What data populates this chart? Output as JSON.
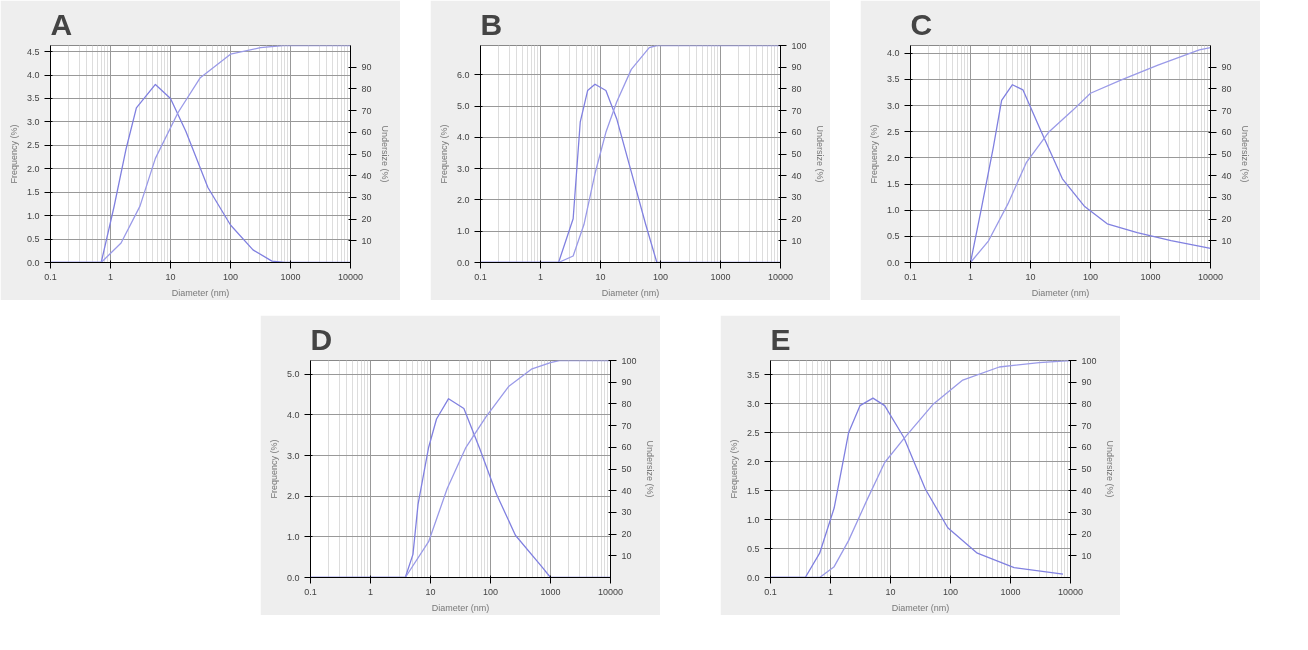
{
  "chart_data": [
    {
      "type": "line",
      "title": "A",
      "xlabel": "Diameter (nm)",
      "ylabel": "Frequency (%)",
      "y2label": "Undersize (%)",
      "log": "x",
      "grid": true,
      "xlim": [
        0.1,
        10000
      ],
      "xticks": [
        0.1,
        1,
        10,
        100,
        1000,
        10000
      ],
      "ylim": [
        0,
        4.63
      ],
      "yticks": [
        {
          "value": 0,
          "label": "0.0"
        },
        0.5,
        {
          "value": 1,
          "label": "1.0"
        },
        1.5,
        {
          "value": 2,
          "label": "2.0"
        },
        2.5,
        {
          "value": 3,
          "label": "3.0"
        },
        3.5,
        {
          "value": 4,
          "label": "4.0"
        },
        4.5
      ],
      "y2lim": [
        0,
        100
      ],
      "y2ticks": [
        10,
        20,
        30,
        40,
        50,
        60,
        70,
        80,
        90
      ],
      "series": [
        {
          "color": "#8080e0",
          "x": [
            0.1,
            0.7,
            1.15,
            1.8,
            2.7,
            5.6,
            10,
            18,
            42,
            100,
            237,
            490,
            800,
            10000
          ],
          "values": [
            0,
            0,
            1.2,
            2.4,
            3.3,
            3.8,
            3.5,
            2.8,
            1.6,
            0.8,
            0.27,
            0.03,
            0,
            0
          ]
        },
        {
          "color": "#9a9ae8",
          "axis": "y2",
          "x": [
            0.1,
            0.7,
            1.5,
            3.1,
            5.6,
            13.3,
            31,
            100,
            316,
            750,
            10000
          ],
          "values": [
            0,
            0,
            9,
            26,
            48,
            69,
            85,
            96,
            99,
            100,
            100
          ]
        }
      ]
    },
    {
      "type": "line",
      "title": "B",
      "xlabel": "Diameter (nm)",
      "ylabel": "Frequency (%)",
      "y2label": "Undersize (%)",
      "log": "x",
      "grid": true,
      "xlim": [
        0.1,
        10000
      ],
      "xticks": [
        0.1,
        1,
        10,
        100,
        1000,
        10000
      ],
      "ylim": [
        0,
        6.94
      ],
      "yticks": [
        {
          "value": 0,
          "label": "0.0"
        },
        {
          "value": 1,
          "label": "1.0"
        },
        {
          "value": 2,
          "label": "2.0"
        },
        {
          "value": 3,
          "label": "3.0"
        },
        {
          "value": 4,
          "label": "4.0"
        },
        {
          "value": 5,
          "label": "5.0"
        },
        {
          "value": 6,
          "label": "6.0"
        }
      ],
      "y2lim": [
        0,
        100
      ],
      "y2ticks": [
        10,
        20,
        30,
        40,
        50,
        60,
        70,
        80,
        90,
        100
      ],
      "series": [
        {
          "color": "#8080e0",
          "x": [
            0.1,
            2.0,
            3.5,
            4.6,
            6.1,
            8.1,
            12.3,
            18.6,
            32.6,
            57,
            87,
            10000
          ],
          "values": [
            0,
            0,
            1.4,
            4.5,
            5.5,
            5.7,
            5.5,
            4.6,
            2.9,
            1.2,
            0,
            0
          ]
        },
        {
          "color": "#9a9ae8",
          "axis": "y2",
          "x": [
            0.1,
            2.0,
            3.5,
            5.3,
            8.1,
            12.3,
            18.6,
            32.6,
            65,
            87,
            10000
          ],
          "values": [
            0,
            0,
            3,
            17.5,
            41,
            60,
            74,
            89,
            99,
            100,
            100
          ]
        }
      ]
    },
    {
      "type": "line",
      "title": "C",
      "xlabel": "Diameter (nm)",
      "ylabel": "Frequency (%)",
      "y2label": "Undersize (%)",
      "log": "x",
      "grid": true,
      "xlim": [
        0.1,
        10000
      ],
      "xticks": [
        0.1,
        1,
        10,
        100,
        1000,
        10000
      ],
      "ylim": [
        0,
        4.15
      ],
      "yticks": [
        {
          "value": 0,
          "label": "0.0"
        },
        0.5,
        {
          "value": 1,
          "label": "1.0"
        },
        1.5,
        {
          "value": 2,
          "label": "2.0"
        },
        2.5,
        {
          "value": 3,
          "label": "3.0"
        },
        3.5,
        {
          "value": 4,
          "label": "4.0"
        }
      ],
      "y2lim": [
        0,
        100
      ],
      "y2ticks": [
        10,
        20,
        30,
        40,
        50,
        60,
        70,
        80,
        90
      ],
      "series": [
        {
          "color": "#8080e0",
          "x": [
            1,
            1.5,
            2.4,
            3.3,
            5,
            7.5,
            14.5,
            34,
            80,
            190,
            600,
            2200,
            10000
          ],
          "values": [
            0,
            1.0,
            2.2,
            3.1,
            3.4,
            3.3,
            2.55,
            1.6,
            1.07,
            0.74,
            0.57,
            0.42,
            0.27
          ]
        },
        {
          "color": "#9a9ae8",
          "axis": "y2",
          "x": [
            1,
            2,
            4.2,
            8.5,
            20,
            50,
            100,
            320,
            1330,
            6500,
            10000
          ],
          "values": [
            0,
            10,
            27,
            46,
            60,
            70,
            78,
            84,
            91,
            98,
            99
          ]
        }
      ]
    },
    {
      "type": "line",
      "title": "D",
      "xlabel": "Diameter (nm)",
      "ylabel": "Frequency (%)",
      "y2label": "Undersize (%)",
      "log": "x",
      "grid": true,
      "xlim": [
        0.1,
        10000
      ],
      "xticks": [
        0.1,
        1,
        10,
        100,
        1000,
        10000
      ],
      "ylim": [
        0,
        5.34
      ],
      "yticks": [
        {
          "value": 0,
          "label": "0.0"
        },
        {
          "value": 1,
          "label": "1.0"
        },
        {
          "value": 2,
          "label": "2.0"
        },
        {
          "value": 3,
          "label": "3.0"
        },
        {
          "value": 4,
          "label": "4.0"
        },
        {
          "value": 5,
          "label": "5.0"
        }
      ],
      "y2lim": [
        0,
        100
      ],
      "y2ticks": [
        10,
        20,
        30,
        40,
        50,
        60,
        70,
        80,
        90,
        100
      ],
      "series": [
        {
          "color": "#8080e0",
          "x": [
            0.1,
            3.8,
            5.1,
            6.2,
            9.3,
            12.6,
            20,
            36,
            67,
            126,
            260,
            720,
            1000,
            10000
          ],
          "values": [
            0,
            0,
            0.57,
            1.8,
            3.2,
            3.9,
            4.4,
            4.16,
            3.15,
            2.05,
            1.04,
            0.26,
            0,
            0
          ]
        },
        {
          "color": "#9a9ae8",
          "axis": "y2",
          "x": [
            0.1,
            3.8,
            9.3,
            19,
            39,
            84,
            200,
            480,
            1000,
            1400,
            10000
          ],
          "values": [
            0,
            0,
            16.5,
            41,
            60,
            74,
            88,
            96,
            99,
            100,
            100
          ]
        }
      ]
    },
    {
      "type": "line",
      "title": "E",
      "xlabel": "Diameter (nm)",
      "ylabel": "Frequency (%)",
      "y2label": "Undersize (%)",
      "log": "x",
      "grid": true,
      "xlim": [
        0.1,
        10000
      ],
      "xticks": [
        0.1,
        1,
        10,
        100,
        1000,
        10000
      ],
      "ylim": [
        0,
        3.75
      ],
      "yticks": [
        {
          "value": 0,
          "label": "0.0"
        },
        0.5,
        {
          "value": 1,
          "label": "1.0"
        },
        1.5,
        {
          "value": 2,
          "label": "2.0"
        },
        2.5,
        {
          "value": 3,
          "label": "3.0"
        },
        3.5
      ],
      "y2lim": [
        0,
        100
      ],
      "y2ticks": [
        10,
        20,
        30,
        40,
        50,
        60,
        70,
        80,
        90,
        100
      ],
      "series": [
        {
          "color": "#8080e0",
          "x": [
            0.1,
            0.38,
            0.66,
            1.15,
            2,
            3.1,
            5.1,
            8,
            16.7,
            38,
            90,
            280,
            1150,
            7500
          ],
          "values": [
            0,
            0,
            0.42,
            1.2,
            2.5,
            2.97,
            3.1,
            2.97,
            2.42,
            1.53,
            0.86,
            0.42,
            0.17,
            0.06
          ]
        },
        {
          "color": "#9a9ae8",
          "axis": "y2",
          "x": [
            0.1,
            0.66,
            1.15,
            2,
            4.1,
            8,
            16.7,
            52,
            160,
            650,
            3000,
            10000
          ],
          "values": [
            0,
            0,
            5,
            17,
            36,
            53,
            64,
            80,
            91,
            97,
            99,
            100
          ]
        }
      ]
    }
  ]
}
